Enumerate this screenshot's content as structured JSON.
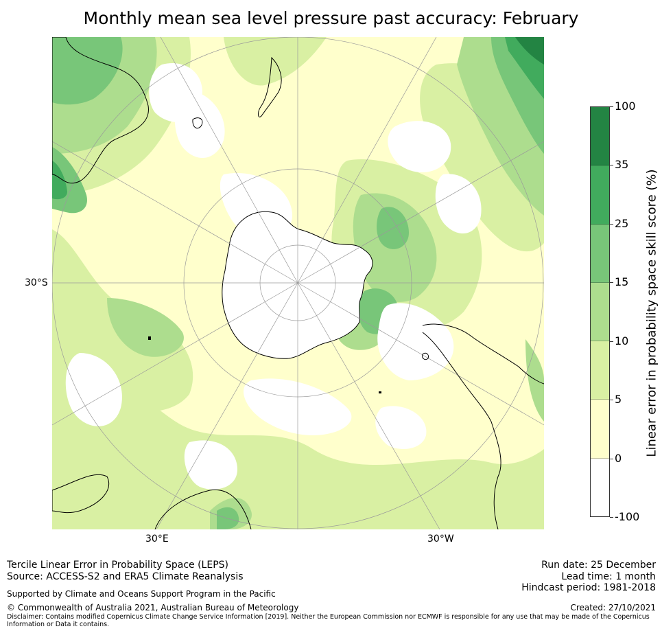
{
  "title": "Monthly mean sea level pressure past accuracy: February",
  "map": {
    "projection": "south-polar-stereographic",
    "lat_label_left": "30°S",
    "lon_label_left": "30°E",
    "lon_label_right": "30°W",
    "colors": {
      "white": "#ffffff",
      "pale_yellow": "#ffffcc",
      "light_green": "#d9f0a3",
      "green1": "#addd8e",
      "green2": "#78c679",
      "green3": "#41ab5d",
      "green4": "#238443",
      "graticule": "#9a9a9a",
      "coast": "#000000"
    }
  },
  "colorbar": {
    "label": "Linear error in probability space skill score (%)",
    "ticks": [
      "100",
      "35",
      "25",
      "15",
      "10",
      "5",
      "0",
      "-100"
    ],
    "colors": [
      "#238443",
      "#41ab5d",
      "#78c679",
      "#addd8e",
      "#d9f0a3",
      "#ffffcc",
      "#ffffff"
    ]
  },
  "footer": {
    "line1": "Tercile Linear Error in Probability Space (LEPS)",
    "line2": "Source: ACCESS-S2 and ERA5 Climate Reanalysis",
    "run_date": "Run date: 25 December",
    "lead_time": "Lead time: 1 month",
    "hindcast": "Hindcast period: 1981-2018",
    "supported": "Supported by Climate and Oceans Support Program in the Pacific",
    "copyright": "© Commonwealth of Australia 2021, Australian Bureau of Meteorology",
    "created": "Created: 27/10/2021",
    "disclaimer1": "Disclaimer: Contains modified Copernicus Climate Change Service Information [2019]. Neither the European Commission nor ECMWF is responsible for any use that may be made of the Copernicus",
    "disclaimer2": "Information or Data it contains."
  }
}
